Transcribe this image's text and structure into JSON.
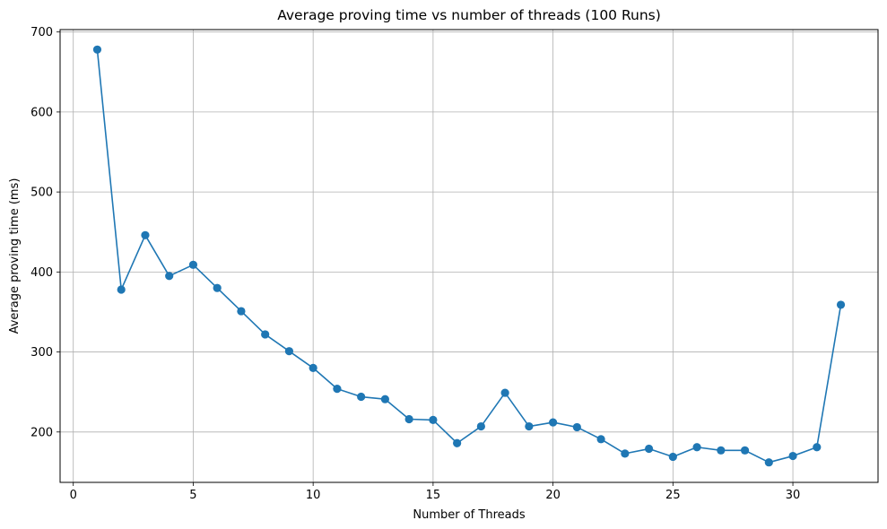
{
  "chart_data": {
    "type": "line",
    "title": "Average proving time vs number of threads (100 Runs)",
    "xlabel": "Number of Threads",
    "ylabel": "Average proving time (ms)",
    "xlim": [
      -0.55,
      33.55
    ],
    "ylim": [
      137,
      703
    ],
    "xticks": [
      0,
      5,
      10,
      15,
      20,
      25,
      30
    ],
    "yticks": [
      200,
      300,
      400,
      500,
      600,
      700
    ],
    "grid": true,
    "marker": "circle",
    "color": "#1f77b4",
    "series": [
      {
        "x": [
          1,
          2,
          3,
          4,
          5,
          6,
          7,
          8,
          9,
          10,
          11,
          12,
          13,
          14,
          15,
          16,
          17,
          18,
          19,
          20,
          21,
          22,
          23,
          24,
          25,
          26,
          27,
          28,
          29,
          30,
          31,
          32
        ],
        "values": [
          678,
          378,
          446,
          395,
          409,
          380,
          351,
          322,
          301,
          280,
          254,
          244,
          241,
          216,
          215,
          186,
          207,
          249,
          207,
          212,
          206,
          191,
          173,
          179,
          169,
          181,
          177,
          177,
          162,
          170,
          181,
          359
        ]
      }
    ]
  }
}
